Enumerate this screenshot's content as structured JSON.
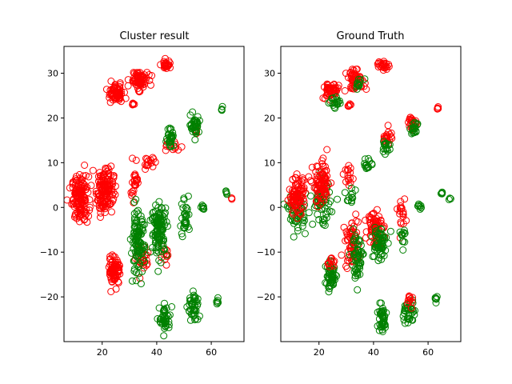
{
  "colors": {
    "red": "#ff0000",
    "green": "#008000",
    "axis": "#000000",
    "background": "#ffffff"
  },
  "chart_data": [
    {
      "type": "scatter",
      "title": "Cluster result",
      "xlabel": "",
      "ylabel": "",
      "xlim": [
        6,
        72
      ],
      "ylim": [
        -30,
        36
      ],
      "xticks": [
        20,
        40,
        60
      ],
      "yticks": [
        -20,
        -10,
        0,
        10,
        20,
        30
      ],
      "grid": false,
      "legend": "none",
      "marker": "hollow-circle",
      "clusters": [
        {
          "color": "red",
          "cx": 12,
          "cy": 2,
          "sx": 1.5,
          "sy": 2.5,
          "n": 150
        },
        {
          "color": "red",
          "cx": 21,
          "cy": 4,
          "sx": 1.6,
          "sy": 2.6,
          "n": 140
        },
        {
          "color": "red",
          "cx": 25,
          "cy": 25.5,
          "sx": 1.4,
          "sy": 1.0,
          "n": 70
        },
        {
          "color": "red",
          "cx": 33.5,
          "cy": 28.5,
          "sx": 1.6,
          "sy": 1.0,
          "n": 70
        },
        {
          "color": "red",
          "cx": 43.5,
          "cy": 31.8,
          "sx": 1.0,
          "sy": 0.5,
          "n": 25
        },
        {
          "color": "red",
          "cx": 31,
          "cy": 23,
          "sx": 0.3,
          "sy": 0.2,
          "n": 6
        },
        {
          "color": "red",
          "cx": 32,
          "cy": 6,
          "sx": 1.0,
          "sy": 2.2,
          "n": 25
        },
        {
          "color": "red",
          "cx": 37,
          "cy": 10,
          "sx": 1.0,
          "sy": 0.6,
          "n": 15
        },
        {
          "color": "red",
          "cx": 46,
          "cy": 13.5,
          "sx": 1.2,
          "sy": 0.6,
          "n": 12
        },
        {
          "color": "red",
          "cx": 24.5,
          "cy": -14,
          "sx": 1.1,
          "sy": 1.6,
          "n": 75
        },
        {
          "color": "red",
          "cx": 35,
          "cy": -12,
          "sx": 1.2,
          "sy": 1.5,
          "n": 25
        },
        {
          "color": "red",
          "cx": 43,
          "cy": -11,
          "sx": 0.7,
          "sy": 0.8,
          "n": 12
        },
        {
          "color": "red",
          "cx": 54.5,
          "cy": 17,
          "sx": 0.4,
          "sy": 0.5,
          "n": 5
        },
        {
          "color": "red",
          "cx": 67.5,
          "cy": 2,
          "sx": 0.2,
          "sy": 0.2,
          "n": 3
        },
        {
          "color": "green",
          "cx": 33,
          "cy": -8,
          "sx": 1.2,
          "sy": 3.5,
          "n": 110
        },
        {
          "color": "green",
          "cx": 41,
          "cy": -5,
          "sx": 1.4,
          "sy": 2.8,
          "n": 120
        },
        {
          "color": "green",
          "cx": 45,
          "cy": 16,
          "sx": 0.6,
          "sy": 1.2,
          "n": 30
        },
        {
          "color": "green",
          "cx": 54,
          "cy": 18.5,
          "sx": 0.8,
          "sy": 1.0,
          "n": 40
        },
        {
          "color": "green",
          "cx": 50.5,
          "cy": -2,
          "sx": 0.8,
          "sy": 2.6,
          "n": 35
        },
        {
          "color": "green",
          "cx": 57,
          "cy": 0,
          "sx": 0.4,
          "sy": 0.3,
          "n": 8
        },
        {
          "color": "green",
          "cx": 64,
          "cy": 22,
          "sx": 0.2,
          "sy": 0.2,
          "n": 4
        },
        {
          "color": "green",
          "cx": 65.5,
          "cy": 3.2,
          "sx": 0.2,
          "sy": 0.2,
          "n": 4
        },
        {
          "color": "green",
          "cx": 43,
          "cy": -25,
          "sx": 1.0,
          "sy": 1.6,
          "n": 45
        },
        {
          "color": "green",
          "cx": 53.5,
          "cy": -22.5,
          "sx": 1.0,
          "sy": 1.8,
          "n": 45
        },
        {
          "color": "green",
          "cx": 62.5,
          "cy": -21,
          "sx": 0.3,
          "sy": 0.3,
          "n": 6
        }
      ]
    },
    {
      "type": "scatter",
      "title": "Ground Truth",
      "xlabel": "",
      "ylabel": "",
      "xlim": [
        6,
        72
      ],
      "ylim": [
        -30,
        36
      ],
      "xticks": [
        20,
        40,
        60
      ],
      "yticks": [
        -20,
        -10,
        0,
        10,
        20,
        30
      ],
      "grid": false,
      "legend": "none",
      "marker": "hollow-circle",
      "clusters": [
        {
          "color": "green",
          "cx": 12,
          "cy": -1,
          "sx": 1.6,
          "sy": 2.0,
          "n": 60
        },
        {
          "color": "red",
          "cx": 12,
          "cy": 2.5,
          "sx": 1.5,
          "sy": 2.0,
          "n": 90
        },
        {
          "color": "green",
          "cx": 21,
          "cy": 1,
          "sx": 1.6,
          "sy": 2.4,
          "n": 60
        },
        {
          "color": "red",
          "cx": 21,
          "cy": 5,
          "sx": 1.6,
          "sy": 2.4,
          "n": 80
        },
        {
          "color": "red",
          "cx": 24.5,
          "cy": 26,
          "sx": 1.4,
          "sy": 0.9,
          "n": 55
        },
        {
          "color": "green",
          "cx": 25,
          "cy": 23.5,
          "sx": 1.4,
          "sy": 0.8,
          "n": 18
        },
        {
          "color": "red",
          "cx": 33.5,
          "cy": 28.5,
          "sx": 1.6,
          "sy": 1.0,
          "n": 60
        },
        {
          "color": "green",
          "cx": 35,
          "cy": 27.5,
          "sx": 1.2,
          "sy": 0.8,
          "n": 12
        },
        {
          "color": "red",
          "cx": 43.5,
          "cy": 31.8,
          "sx": 1.0,
          "sy": 0.5,
          "n": 25
        },
        {
          "color": "red",
          "cx": 31,
          "cy": 23,
          "sx": 0.3,
          "sy": 0.2,
          "n": 6
        },
        {
          "color": "red",
          "cx": 31,
          "cy": 7,
          "sx": 1.0,
          "sy": 1.5,
          "n": 15
        },
        {
          "color": "green",
          "cx": 32,
          "cy": 3,
          "sx": 0.8,
          "sy": 1.2,
          "n": 12
        },
        {
          "color": "green",
          "cx": 38,
          "cy": 9.5,
          "sx": 1.0,
          "sy": 0.8,
          "n": 14
        },
        {
          "color": "red",
          "cx": 45,
          "cy": 16,
          "sx": 0.8,
          "sy": 0.9,
          "n": 20
        },
        {
          "color": "green",
          "cx": 45,
          "cy": 13.5,
          "sx": 0.8,
          "sy": 1.0,
          "n": 16
        },
        {
          "color": "red",
          "cx": 54,
          "cy": 19,
          "sx": 0.9,
          "sy": 0.8,
          "n": 25
        },
        {
          "color": "green",
          "cx": 55,
          "cy": 17.5,
          "sx": 0.8,
          "sy": 0.7,
          "n": 18
        },
        {
          "color": "red",
          "cx": 50.5,
          "cy": -2.5,
          "sx": 0.6,
          "sy": 1.8,
          "n": 18
        },
        {
          "color": "green",
          "cx": 51,
          "cy": -6,
          "sx": 0.6,
          "sy": 1.2,
          "n": 12
        },
        {
          "color": "green",
          "cx": 57,
          "cy": 0,
          "sx": 0.4,
          "sy": 0.3,
          "n": 8
        },
        {
          "color": "red",
          "cx": 63.5,
          "cy": 22,
          "sx": 0.2,
          "sy": 0.2,
          "n": 4
        },
        {
          "color": "green",
          "cx": 65,
          "cy": 3.2,
          "sx": 0.2,
          "sy": 0.2,
          "n": 4
        },
        {
          "color": "green",
          "cx": 68,
          "cy": 2,
          "sx": 0.2,
          "sy": 0.2,
          "n": 3
        },
        {
          "color": "green",
          "cx": 24.5,
          "cy": -15.5,
          "sx": 1.1,
          "sy": 1.4,
          "n": 55
        },
        {
          "color": "red",
          "cx": 24,
          "cy": -12,
          "sx": 0.8,
          "sy": 0.7,
          "n": 12
        },
        {
          "color": "red",
          "cx": 32,
          "cy": -8,
          "sx": 1.2,
          "sy": 2.8,
          "n": 60
        },
        {
          "color": "green",
          "cx": 34,
          "cy": -11,
          "sx": 1.2,
          "sy": 2.6,
          "n": 55
        },
        {
          "color": "red",
          "cx": 40.5,
          "cy": -4,
          "sx": 1.3,
          "sy": 2.2,
          "n": 65
        },
        {
          "color": "green",
          "cx": 42,
          "cy": -8,
          "sx": 1.3,
          "sy": 2.2,
          "n": 55
        },
        {
          "color": "green",
          "cx": 43,
          "cy": -25,
          "sx": 1.0,
          "sy": 1.6,
          "n": 45
        },
        {
          "color": "green",
          "cx": 53,
          "cy": -23.5,
          "sx": 1.0,
          "sy": 1.6,
          "n": 35
        },
        {
          "color": "red",
          "cx": 53.5,
          "cy": -20.5,
          "sx": 0.7,
          "sy": 0.8,
          "n": 10
        },
        {
          "color": "green",
          "cx": 63,
          "cy": -20.5,
          "sx": 0.3,
          "sy": 0.3,
          "n": 6
        }
      ]
    }
  ]
}
